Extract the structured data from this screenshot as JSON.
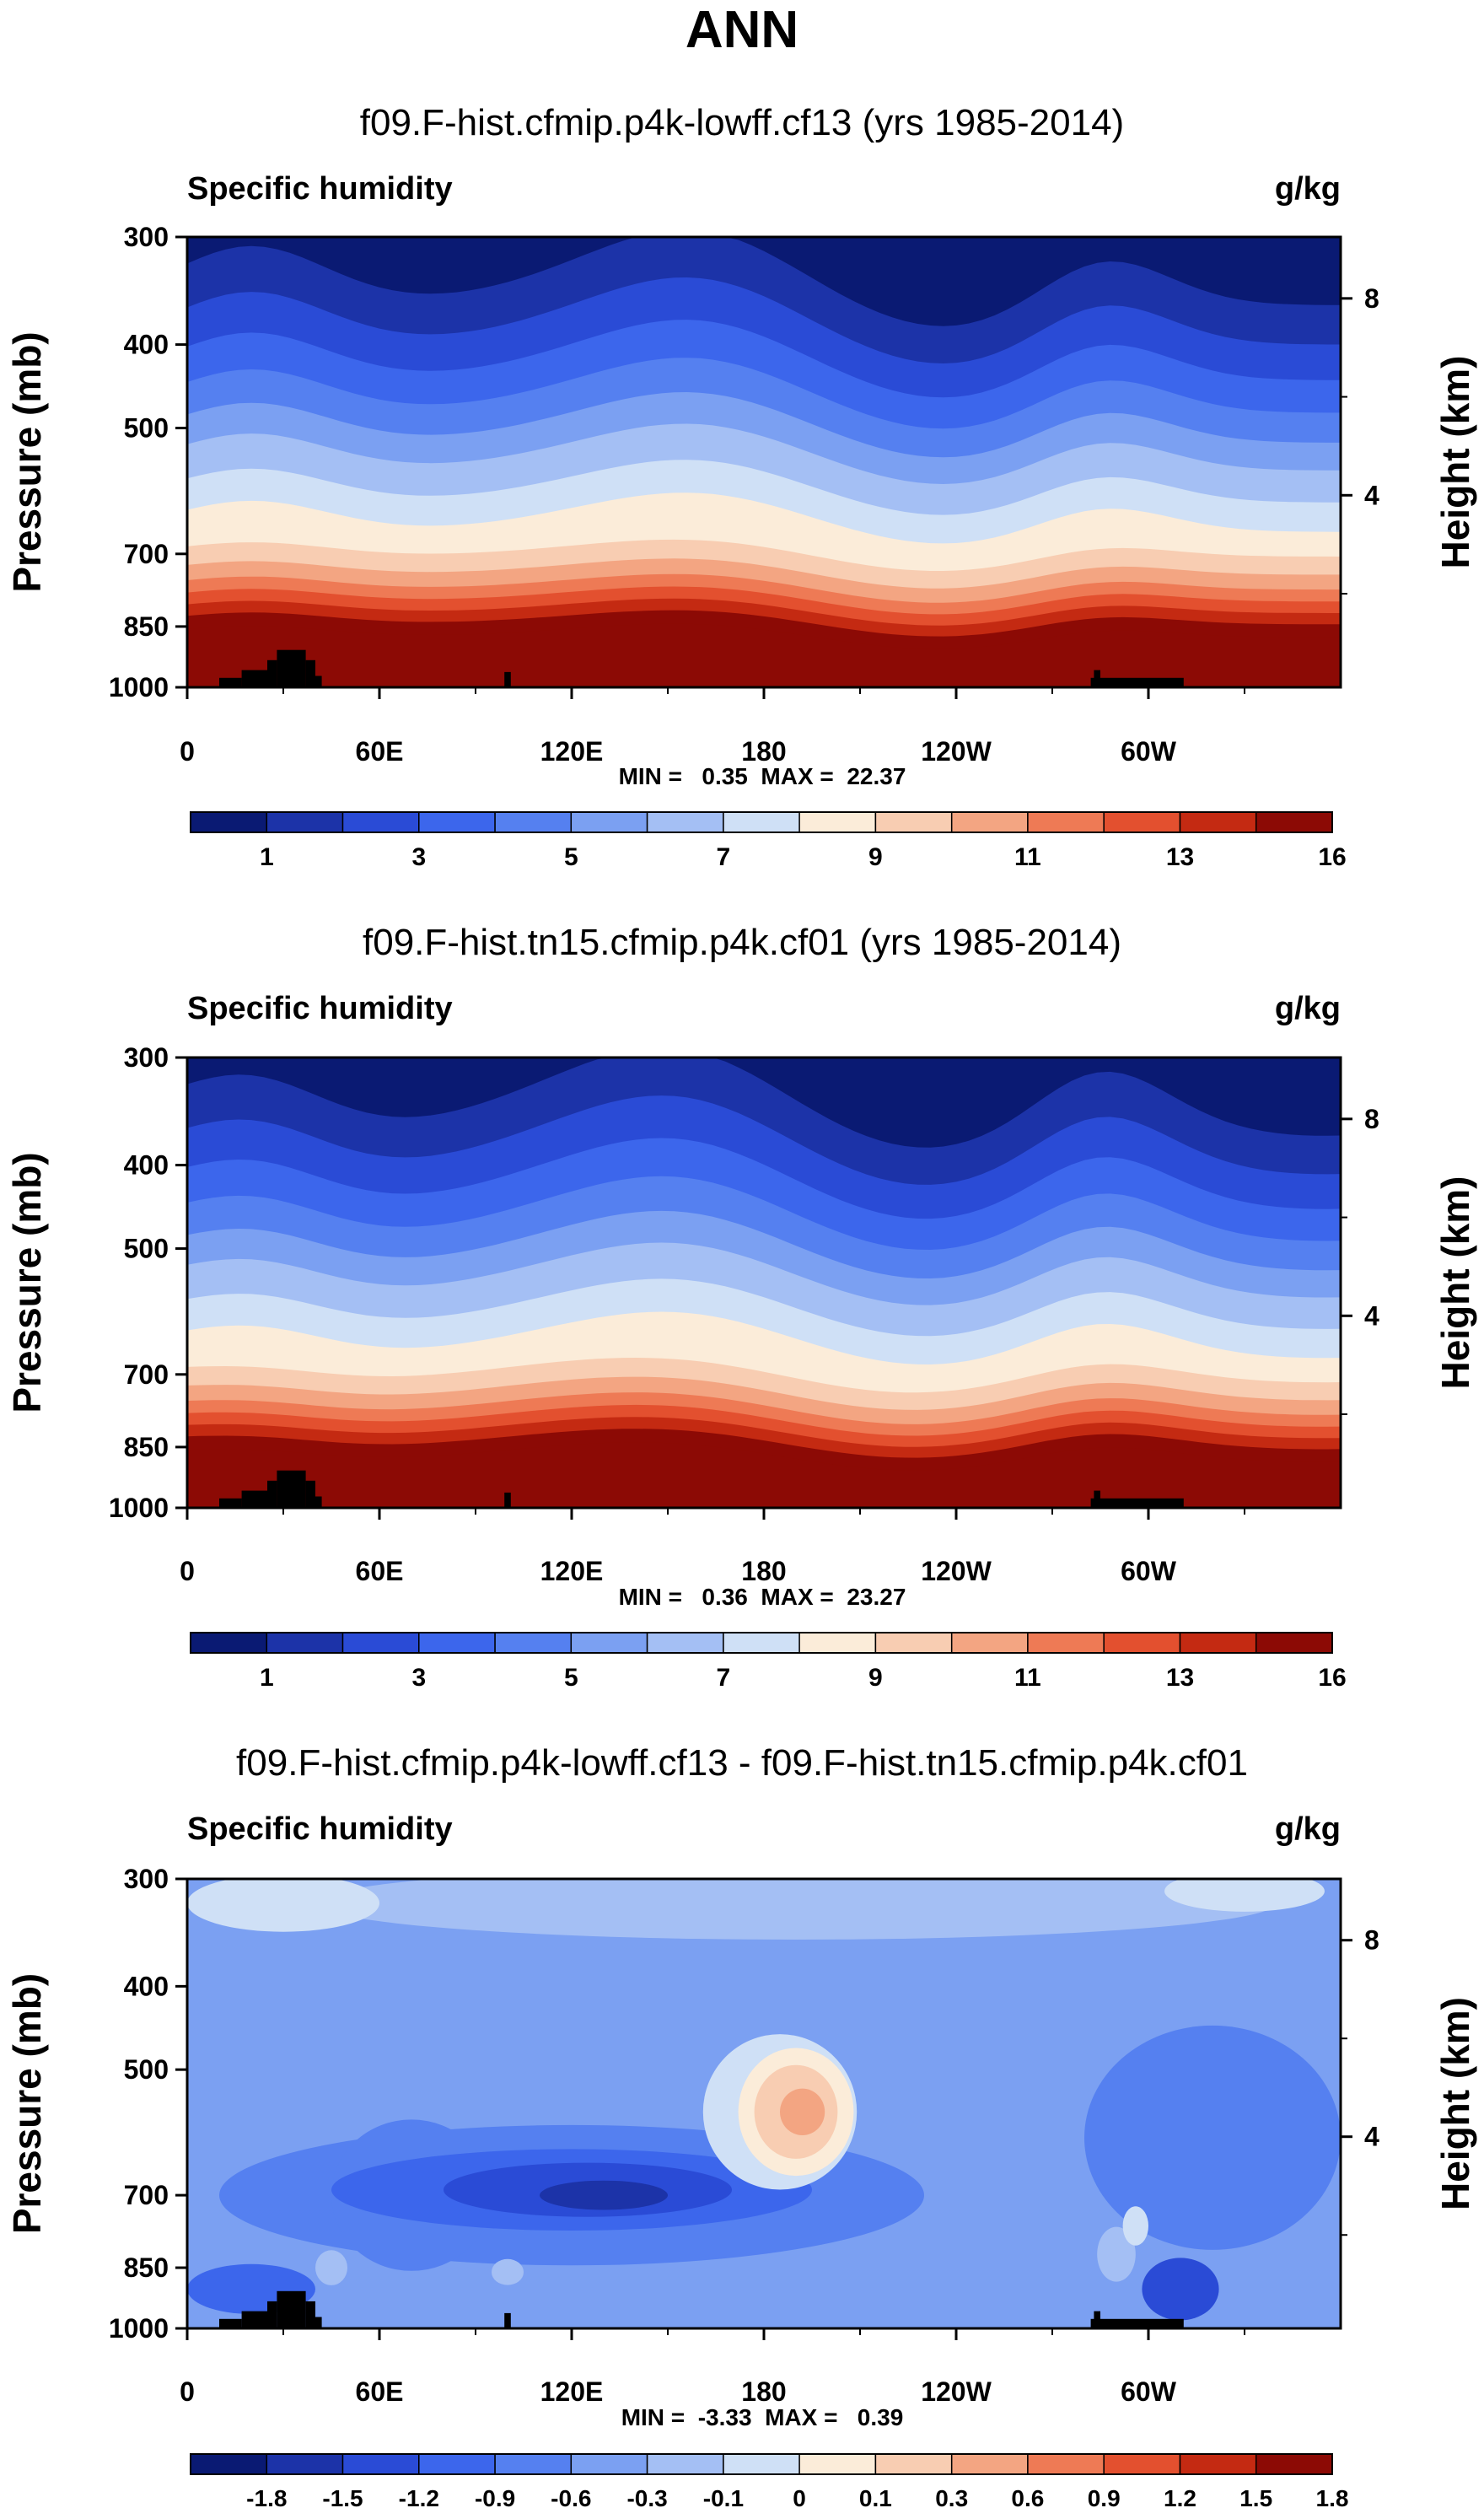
{
  "page_title": "ANN",
  "colors": {
    "absolute_scale": [
      "#0a1a73",
      "#1c33a8",
      "#2a4bd6",
      "#3c66ec",
      "#5580f0",
      "#7ba0f2",
      "#a4bff4",
      "#cfe0f6",
      "#fbecd9",
      "#f8cdb2",
      "#f3a582",
      "#ee7a55",
      "#e3502f",
      "#c42a12",
      "#8c0a05"
    ],
    "difference_scale": [
      "#0a1a73",
      "#1c33a8",
      "#2a4bd6",
      "#3c66ec",
      "#5580f0",
      "#7ba0f2",
      "#a4bff4",
      "#cfe0f6",
      "#fbecd9",
      "#f8cdb2",
      "#f3a582",
      "#ee7a55",
      "#e3502f",
      "#c42a12",
      "#8c0a05"
    ],
    "topography": "#000000"
  },
  "chart_data": [
    {
      "type": "heatmap",
      "title": "f09.F-hist.cfmip.p4k-lowff.cf13 (yrs 1985-2014)",
      "variable": "Specific humidity",
      "units": "g/kg",
      "ylabel": "Pressure (mb)",
      "ylabel_right": "Height (km)",
      "x_ticks": [
        "0",
        "60E",
        "120E",
        "180",
        "120W",
        "60W"
      ],
      "x_tick_values": [
        0,
        60,
        120,
        180,
        240,
        300
      ],
      "xlim": [
        0,
        360
      ],
      "y_ticks": [
        "300",
        "400",
        "500",
        "700",
        "850",
        "1000"
      ],
      "y_tick_values": [
        300,
        400,
        500,
        700,
        850,
        1000
      ],
      "ylim": [
        1000,
        300
      ],
      "right_ticks": [
        "8",
        "4"
      ],
      "right_tick_values": [
        8,
        4
      ],
      "stats": "MIN =   0.35  MAX =  22.37",
      "min": 0.35,
      "max": 22.37,
      "colorbar_labels": [
        "1",
        "3",
        "5",
        "7",
        "9",
        "11",
        "13",
        "16"
      ],
      "colorbar_levels": [
        0.5,
        1,
        2,
        3,
        4,
        5,
        6,
        7,
        8,
        9,
        10,
        11,
        12,
        13,
        14,
        16
      ]
    },
    {
      "type": "heatmap",
      "title": "f09.F-hist.tn15.cfmip.p4k.cf01 (yrs 1985-2014)",
      "variable": "Specific humidity",
      "units": "g/kg",
      "ylabel": "Pressure (mb)",
      "ylabel_right": "Height (km)",
      "x_ticks": [
        "0",
        "60E",
        "120E",
        "180",
        "120W",
        "60W"
      ],
      "x_tick_values": [
        0,
        60,
        120,
        180,
        240,
        300
      ],
      "xlim": [
        0,
        360
      ],
      "y_ticks": [
        "300",
        "400",
        "500",
        "700",
        "850",
        "1000"
      ],
      "y_tick_values": [
        300,
        400,
        500,
        700,
        850,
        1000
      ],
      "ylim": [
        1000,
        300
      ],
      "right_ticks": [
        "8",
        "4"
      ],
      "right_tick_values": [
        8,
        4
      ],
      "stats": "MIN =   0.36  MAX =  23.27",
      "min": 0.36,
      "max": 23.27,
      "colorbar_labels": [
        "1",
        "3",
        "5",
        "7",
        "9",
        "11",
        "13",
        "16"
      ],
      "colorbar_levels": [
        0.5,
        1,
        2,
        3,
        4,
        5,
        6,
        7,
        8,
        9,
        10,
        11,
        12,
        13,
        14,
        16
      ]
    },
    {
      "type": "heatmap",
      "title": "f09.F-hist.cfmip.p4k-lowff.cf13 - f09.F-hist.tn15.cfmip.p4k.cf01",
      "variable": "Specific humidity",
      "units": "g/kg",
      "ylabel": "Pressure (mb)",
      "ylabel_right": "Height (km)",
      "x_ticks": [
        "0",
        "60E",
        "120E",
        "180",
        "120W",
        "60W"
      ],
      "x_tick_values": [
        0,
        60,
        120,
        180,
        240,
        300
      ],
      "xlim": [
        0,
        360
      ],
      "y_ticks": [
        "300",
        "400",
        "500",
        "700",
        "850",
        "1000"
      ],
      "y_tick_values": [
        300,
        400,
        500,
        700,
        850,
        1000
      ],
      "ylim": [
        1000,
        300
      ],
      "right_ticks": [
        "8",
        "4"
      ],
      "right_tick_values": [
        8,
        4
      ],
      "stats": "MIN =  -3.33  MAX =   0.39",
      "min": -3.33,
      "max": 0.39,
      "colorbar_labels": [
        "-1.8",
        "-1.5",
        "-1.2",
        "-0.9",
        "-0.6",
        "-0.3",
        "-0.1",
        "0",
        "0.1",
        "0.3",
        "0.6",
        "0.9",
        "1.2",
        "1.5",
        "1.8"
      ],
      "colorbar_levels": [
        -1.8,
        -1.5,
        -1.2,
        -0.9,
        -0.6,
        -0.3,
        -0.1,
        0,
        0.1,
        0.3,
        0.6,
        0.9,
        1.2,
        1.5,
        1.8
      ]
    }
  ]
}
